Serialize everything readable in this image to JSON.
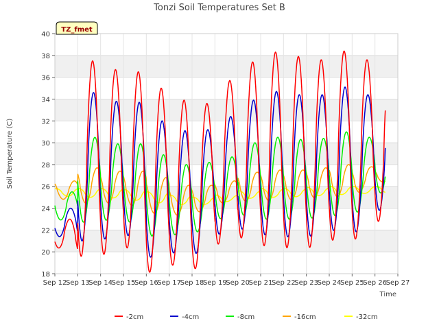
{
  "chart_data": {
    "type": "line",
    "title": "Tonzi Soil Temperatures Set B",
    "xlabel": "Time",
    "ylabel": "Soil Temperature (C)",
    "site_tag": "TZ_fmet",
    "xlim": [
      12,
      27
    ],
    "ylim": [
      18,
      40
    ],
    "yticks": [
      18,
      20,
      22,
      24,
      26,
      28,
      30,
      32,
      34,
      36,
      38,
      40
    ],
    "xticks": [
      12,
      13,
      14,
      15,
      16,
      17,
      18,
      19,
      20,
      21,
      22,
      23,
      24,
      25,
      26,
      27
    ],
    "xtick_labels": [
      "Sep 12",
      "Sep 13",
      "Sep 14",
      "Sep 15",
      "Sep 16",
      "Sep 17",
      "Sep 18",
      "Sep 19",
      "Sep 20",
      "Sep 21",
      "Sep 22",
      "Sep 23",
      "Sep 24",
      "Sep 25",
      "Sep 26",
      "Sep 27"
    ],
    "grid": true,
    "legend_position": "bottom",
    "days": [
      12,
      13,
      14,
      15,
      16,
      17,
      18,
      19,
      20,
      21,
      22,
      23,
      24,
      25,
      26
    ],
    "series": [
      {
        "name": "-2cm",
        "color": "#ff0000",
        "daily_max": [
          23.0,
          37.5,
          36.7,
          36.5,
          35.0,
          33.9,
          33.6,
          35.7,
          37.4,
          38.3,
          37.9,
          37.6,
          38.4,
          37.6,
          37.4
        ],
        "daily_min": [
          20.5,
          19.6,
          19.6,
          20.8,
          18.0,
          18.9,
          18.1,
          20.6,
          21.4,
          20.6,
          20.4,
          20.3,
          21.1,
          20.9,
          22.8
        ]
      },
      {
        "name": "-4cm",
        "color": "#0000cc",
        "daily_max": [
          24.0,
          34.6,
          33.8,
          33.7,
          32.0,
          31.1,
          31.2,
          32.4,
          33.9,
          34.7,
          34.4,
          34.4,
          35.1,
          34.4,
          34.1
        ],
        "daily_min": [
          21.5,
          21.0,
          21.0,
          22.0,
          19.4,
          20.0,
          19.5,
          21.5,
          22.2,
          21.6,
          21.4,
          21.3,
          22.1,
          21.4,
          23.8
        ]
      },
      {
        "name": "-8cm",
        "color": "#00ee00",
        "daily_max": [
          25.5,
          30.5,
          29.9,
          29.9,
          28.9,
          28.0,
          28.2,
          28.7,
          30.0,
          30.5,
          30.3,
          30.4,
          31.0,
          30.5,
          30.3
        ],
        "daily_min": [
          23.0,
          22.7,
          22.8,
          23.2,
          21.4,
          21.6,
          21.5,
          22.9,
          23.5,
          23.0,
          23.0,
          23.0,
          23.4,
          23.1,
          25.4
        ]
      },
      {
        "name": "-16cm",
        "color": "#ffa500",
        "daily_max": [
          26.5,
          27.7,
          27.4,
          27.4,
          26.8,
          26.1,
          26.1,
          26.5,
          27.3,
          27.5,
          27.5,
          27.7,
          28.0,
          27.8,
          27.6
        ],
        "daily_min": [
          25.0,
          24.5,
          24.4,
          24.6,
          23.6,
          23.4,
          23.3,
          24.4,
          24.6,
          24.7,
          24.7,
          24.9,
          25.1,
          25.0,
          26.4
        ]
      },
      {
        "name": "-32cm",
        "color": "#ffff00",
        "daily_max": [
          25.8,
          25.8,
          25.8,
          25.7,
          25.5,
          25.2,
          25.0,
          25.2,
          25.6,
          25.8,
          25.8,
          25.9,
          26.0,
          26.0,
          26.0
        ],
        "daily_min": [
          25.2,
          25.0,
          25.0,
          24.9,
          24.6,
          24.4,
          24.3,
          24.4,
          24.8,
          25.0,
          25.0,
          25.1,
          25.2,
          25.3,
          25.4
        ]
      }
    ]
  }
}
